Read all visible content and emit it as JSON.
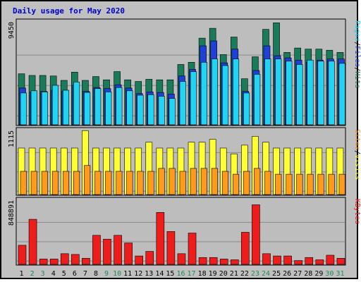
{
  "title": "Daily usage for May 2020",
  "colors": {
    "background": "#c0c0c0",
    "plot_bg": "#bdbdbd",
    "title": "#0000cc",
    "hits": "#1a7b5a",
    "files": "#1e3fd8",
    "pages": "#22d4f4",
    "visits": "#ffff33",
    "sites": "#ff9a1a",
    "kbytes": "#ef1c1c",
    "weekend_label": "#1f8a55"
  },
  "y_max_labels": {
    "hits_panel": "9450",
    "visits_panel": "1115",
    "kbytes_panel": "848891"
  },
  "legends": {
    "top": [
      {
        "text": "Pages",
        "color_key": "pages"
      },
      {
        "text": "/",
        "color_key": "black"
      },
      {
        "text": "Files",
        "color_key": "files"
      },
      {
        "text": "/",
        "color_key": "black"
      },
      {
        "text": "Hits",
        "color_key": "hits"
      }
    ],
    "middle": [
      {
        "text": "Sites",
        "color_key": "sites"
      },
      {
        "text": "/",
        "color_key": "black"
      },
      {
        "text": "Visits",
        "color_key": "visits"
      }
    ],
    "bottom": [
      {
        "text": "KBytes",
        "color_key": "kbytes"
      }
    ]
  },
  "chart_data": {
    "type": "bar",
    "title": "Daily usage for May 2020",
    "categories": [
      "1",
      "2",
      "3",
      "4",
      "5",
      "6",
      "7",
      "8",
      "9",
      "10",
      "11",
      "12",
      "13",
      "14",
      "15",
      "16",
      "17",
      "18",
      "19",
      "20",
      "21",
      "22",
      "23",
      "24",
      "25",
      "26",
      "27",
      "28",
      "29",
      "30",
      "31"
    ],
    "weekend_days": [
      "2",
      "3",
      "9",
      "10",
      "16",
      "17",
      "23",
      "24",
      "30",
      "31"
    ],
    "panels": [
      {
        "ylim": [
          0,
          9450
        ],
        "series": [
          {
            "name": "Hits",
            "values": [
              4650,
              4500,
              4500,
              4450,
              4050,
              4800,
              4050,
              4400,
              4100,
              4850,
              4100,
              3950,
              4150,
              4100,
              4100,
              5500,
              5700,
              7900,
              8800,
              6400,
              8000,
              4200,
              6200,
              8700,
              9300,
              6600,
              7000,
              6900,
              6900,
              6800,
              6600
            ]
          },
          {
            "name": "Files",
            "values": [
              3350,
              3000,
              3050,
              3150,
              3050,
              3600,
              3050,
              3400,
              3300,
              3650,
              3350,
              2850,
              3000,
              2950,
              2800,
              4450,
              5050,
              7200,
              7650,
              5650,
              6900,
              3050,
              4950,
              7200,
              6300,
              6100,
              5900,
              5700,
              5900,
              6000,
              6000
            ]
          },
          {
            "name": "Pages",
            "values": [
              2900,
              3100,
              3000,
              3600,
              3150,
              3900,
              2950,
              3300,
              3000,
              3400,
              3100,
              2700,
              2750,
              2600,
              2400,
              3950,
              4850,
              5700,
              6000,
              5400,
              6000,
              2900,
              4600,
              6000,
              6000,
              5800,
              5500,
              5900,
              5800,
              5800,
              5600
            ]
          }
        ]
      },
      {
        "ylim": [
          0,
          1115
        ],
        "series": [
          {
            "name": "Visits",
            "values": [
              800,
              800,
              800,
              800,
              800,
              800,
              1100,
              800,
              800,
              800,
              800,
              800,
              900,
              800,
              800,
              800,
              900,
              900,
              950,
              800,
              700,
              850,
              1000,
              900,
              800,
              800,
              800,
              800,
              800,
              800,
              800
            ]
          },
          {
            "name": "Sites",
            "values": [
              400,
              400,
              400,
              400,
              400,
              400,
              500,
              400,
              400,
              400,
              400,
              400,
              400,
              450,
              450,
              400,
              450,
              450,
              450,
              400,
              350,
              400,
              450,
              400,
              350,
              350,
              350,
              350,
              350,
              350,
              350
            ]
          }
        ]
      },
      {
        "ylim": [
          0,
          848891
        ],
        "series": [
          {
            "name": "KBytes",
            "values": [
              250000,
              590000,
              70000,
              70000,
              140000,
              130000,
              80000,
              380000,
              330000,
              380000,
              280000,
              110000,
              170000,
              680000,
              430000,
              140000,
              410000,
              90000,
              90000,
              70000,
              60000,
              420000,
              780000,
              140000,
              110000,
              110000,
              50000,
              90000,
              60000,
              120000,
              80000
            ]
          }
        ]
      }
    ]
  }
}
